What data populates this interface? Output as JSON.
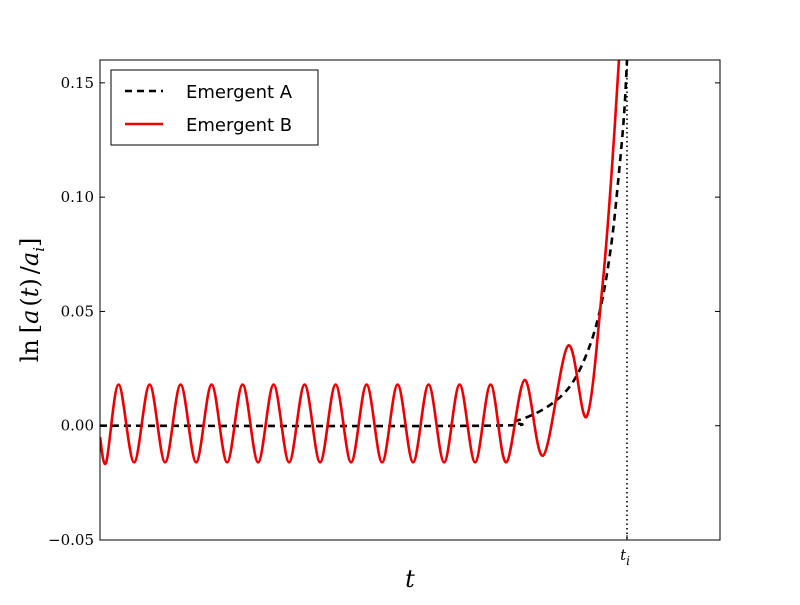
{
  "chart_data": {
    "type": "line",
    "title": "",
    "xlabel": "t",
    "ylabel": "ln [a (t) /a_i]",
    "ylim": [
      -0.05,
      0.16
    ],
    "xlim": [
      0,
      1
    ],
    "yticks": [
      -0.05,
      0.0,
      0.05,
      0.1,
      0.15
    ],
    "ytick_labels": [
      "−0.05",
      "0.00",
      "0.05",
      "0.10",
      "0.15"
    ],
    "xticks": [
      0.85
    ],
    "xtick_labels": [
      "t_i"
    ],
    "vertical_marker": {
      "x": 0.85,
      "label": "t_i",
      "style": "dotted"
    },
    "legend": {
      "placement": "top-left"
    },
    "grid": false,
    "series": [
      {
        "name": "Emergent A",
        "style": "dashed",
        "color": "#000000",
        "description_points": [
          [
            0.0,
            0.0
          ],
          [
            0.62,
            0.0
          ],
          [
            0.67,
            0.002
          ],
          [
            0.72,
            0.008
          ],
          [
            0.76,
            0.018
          ],
          [
            0.79,
            0.035
          ],
          [
            0.81,
            0.055
          ],
          [
            0.825,
            0.08
          ],
          [
            0.835,
            0.105
          ],
          [
            0.845,
            0.135
          ],
          [
            0.85,
            0.16
          ]
        ]
      },
      {
        "name": "Emergent B",
        "style": "solid",
        "color": "#ee0000",
        "description_points": [
          [
            0.0,
            -0.005
          ],
          [
            0.01,
            -0.016
          ],
          [
            0.03,
            0.018
          ],
          [
            0.055,
            -0.016
          ],
          [
            0.08,
            0.018
          ],
          [
            0.105,
            -0.016
          ],
          [
            0.13,
            0.018
          ],
          [
            0.155,
            -0.016
          ],
          [
            0.18,
            0.018
          ],
          [
            0.205,
            -0.016
          ],
          [
            0.23,
            0.018
          ],
          [
            0.255,
            -0.016
          ],
          [
            0.28,
            0.018
          ],
          [
            0.305,
            -0.016
          ],
          [
            0.33,
            0.018
          ],
          [
            0.355,
            -0.016
          ],
          [
            0.38,
            0.018
          ],
          [
            0.405,
            -0.016
          ],
          [
            0.43,
            0.018
          ],
          [
            0.455,
            -0.016
          ],
          [
            0.48,
            0.018
          ],
          [
            0.505,
            -0.016
          ],
          [
            0.53,
            0.018
          ],
          [
            0.555,
            -0.016
          ],
          [
            0.58,
            0.018
          ],
          [
            0.605,
            -0.016
          ],
          [
            0.63,
            0.018
          ],
          [
            0.655,
            -0.016
          ],
          [
            0.685,
            0.02
          ],
          [
            0.715,
            -0.013
          ],
          [
            0.755,
            0.035
          ],
          [
            0.785,
            0.004
          ],
          [
            0.81,
            0.06
          ],
          [
            0.825,
            0.11
          ],
          [
            0.837,
            0.16
          ]
        ]
      }
    ]
  }
}
